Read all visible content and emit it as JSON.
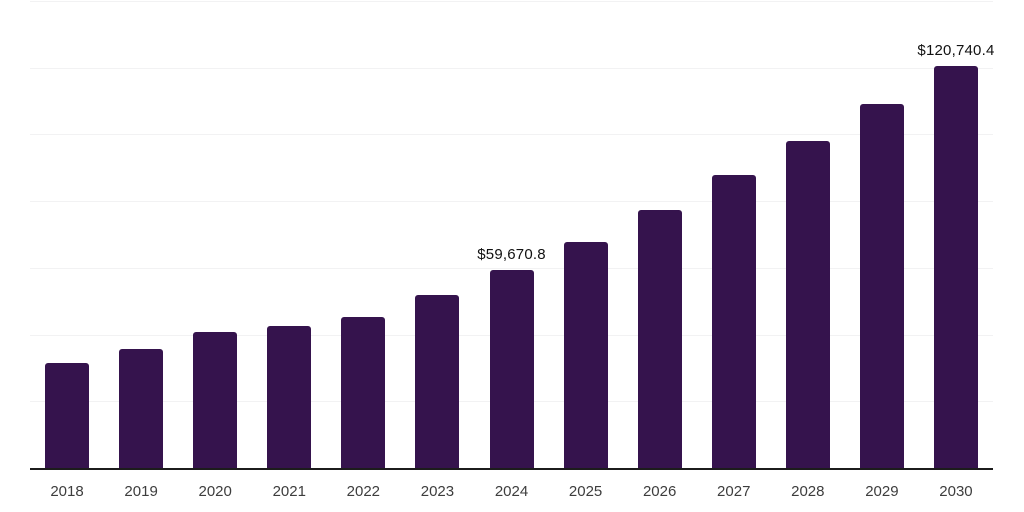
{
  "chart_data": {
    "type": "bar",
    "title": "",
    "xlabel": "",
    "ylabel": "",
    "categories": [
      "2018",
      "2019",
      "2020",
      "2021",
      "2022",
      "2023",
      "2024",
      "2025",
      "2026",
      "2027",
      "2028",
      "2029",
      "2030"
    ],
    "values": [
      31800,
      36000,
      41100,
      42900,
      45600,
      52200,
      59670.8,
      68100,
      77700,
      88200,
      98400,
      109500,
      120740.4
    ],
    "bar_labels": {
      "2024": "$59,670.8",
      "2030": "$120,740.4"
    },
    "ylim": [
      0,
      140000
    ],
    "gridline_step": 20000,
    "grid": "horizontal",
    "y_axis_labels_visible": false,
    "legend": "none",
    "colors": {
      "bar": "#35134d",
      "axis": "#1c1c1c",
      "gridline": "#f2f2f3",
      "tick_label": "#3d3d3d",
      "data_label": "#111111"
    }
  }
}
